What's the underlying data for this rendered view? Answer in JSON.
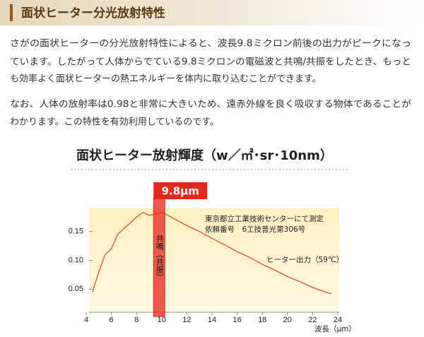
{
  "header": {
    "title": "面状ヒーター分光放射特性"
  },
  "paragraphs": [
    [
      "さがの面状ヒーターの分光放射特性によると、波長9.8ミクロン前後の出力がピークになっ",
      "ています。したがって人体からでている9.8ミクロンの電磁波と共鳴/共振をしたとき、もっと",
      "も効率よく面状ヒーターの熱エネルギーを体内に取り込むことができます。"
    ],
    [
      "なお、人体の放射率は0.98と非常に大きいため、遠赤外線を良く吸収する物体であることが",
      "わかります。この特性を有効利用しているのです。"
    ]
  ],
  "chart_data": {
    "type": "line",
    "title": "面状ヒーター放射輝度（w／㎡･sr･10nm）",
    "x_label": "波長（μm）",
    "annotations": [
      "東京都立工業技術センターにて測定",
      "依頼番号　6工技普光第306号"
    ],
    "highlight": {
      "x": 9.8,
      "label": "9.8μm",
      "text": "共鳴（共振）",
      "color": "#e0281e"
    },
    "x": [
      4.5,
      5,
      5.5,
      6,
      6.5,
      7,
      7.5,
      8,
      8.5,
      9,
      9.5,
      10,
      10.5,
      11,
      12,
      13,
      14,
      15,
      16,
      17,
      18,
      19,
      20,
      21,
      22,
      23,
      23.5
    ],
    "series": [
      {
        "name": "ヒーター出力（59℃）",
        "color": "#e0502a",
        "values": [
          0.045,
          0.08,
          0.11,
          0.12,
          0.145,
          0.155,
          0.165,
          0.175,
          0.183,
          0.178,
          0.18,
          0.183,
          0.178,
          0.172,
          0.16,
          0.15,
          0.138,
          0.127,
          0.115,
          0.105,
          0.093,
          0.083,
          0.072,
          0.063,
          0.053,
          0.045,
          0.042
        ]
      }
    ],
    "xlim": [
      4,
      24
    ],
    "xticks": [
      4,
      6,
      8,
      10,
      12,
      14,
      16,
      18,
      20,
      22,
      24
    ],
    "ylim": [
      0.01,
      0.19
    ],
    "yticks": [
      {
        "value": 0.05,
        "label": "0.05"
      },
      {
        "value": 0.1,
        "label": "0.10"
      },
      {
        "value": 0.15,
        "label": "0.15"
      }
    ]
  }
}
